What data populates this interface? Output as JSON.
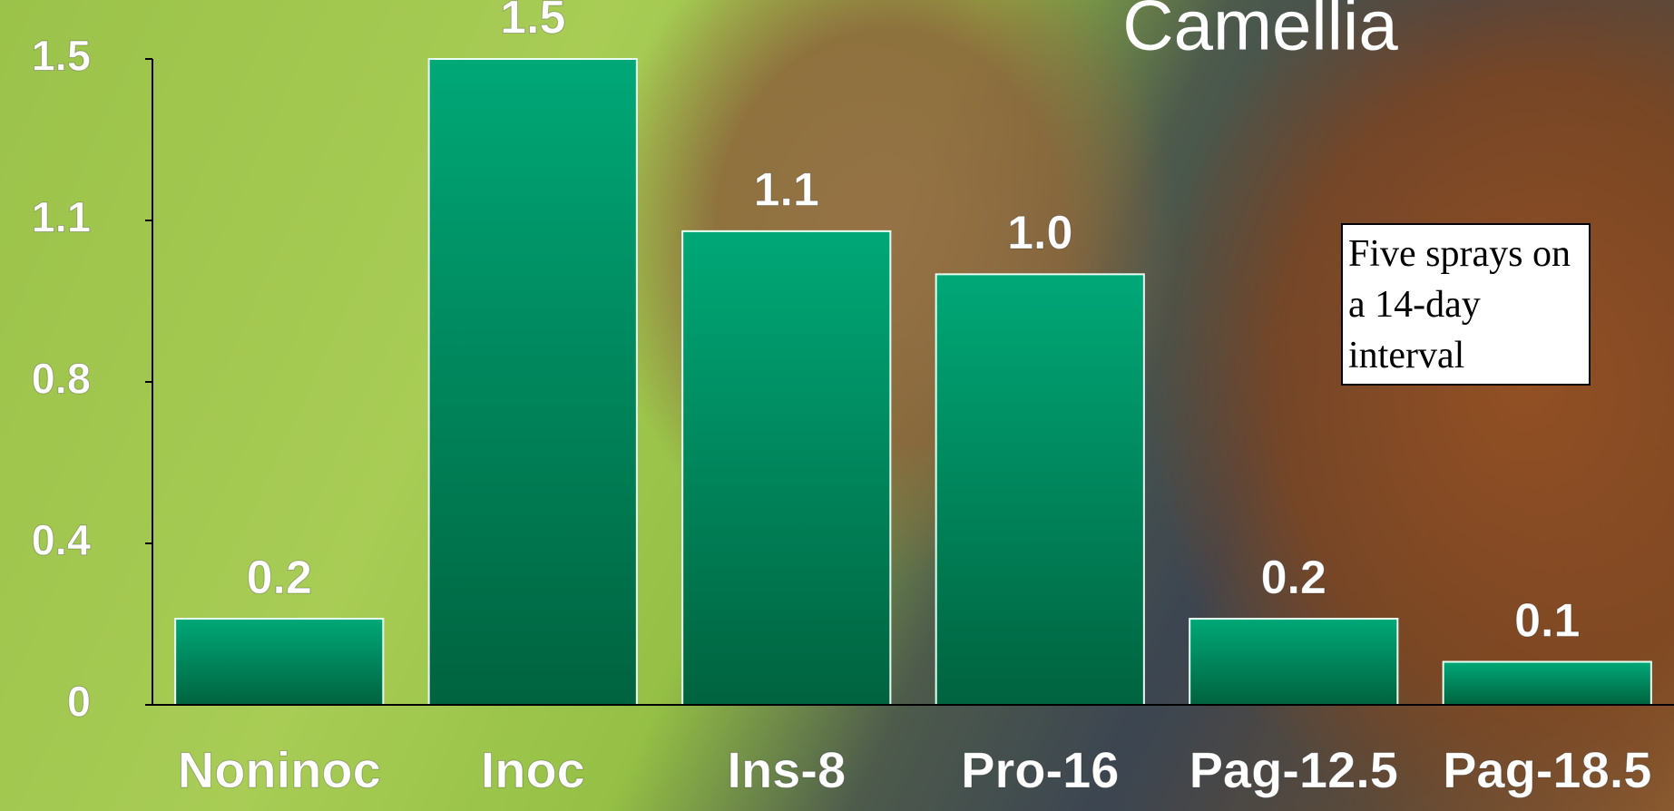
{
  "chart_data": {
    "type": "bar",
    "title": "Camellia",
    "categories": [
      "Noninoc",
      "Inoc",
      "Ins-8",
      "Pro-16",
      "Pag-12.5",
      "Pag-18.5"
    ],
    "values": [
      0.2,
      1.5,
      1.1,
      1.0,
      0.2,
      0.1
    ],
    "value_labels": [
      "0.2",
      "1.5",
      "1.1",
      "1.0",
      "0.2",
      "0.1"
    ],
    "color": "#00a374",
    "ylim": [
      0,
      1.5
    ],
    "yticks": [
      0,
      {
        "value": 0.375,
        "label": "0.4"
      },
      {
        "value": 0.75,
        "label": "0.8"
      },
      {
        "value": 1.125,
        "label": "1.1"
      },
      1.5
    ],
    "annotation": "Five sprays on a 14-day interval"
  }
}
